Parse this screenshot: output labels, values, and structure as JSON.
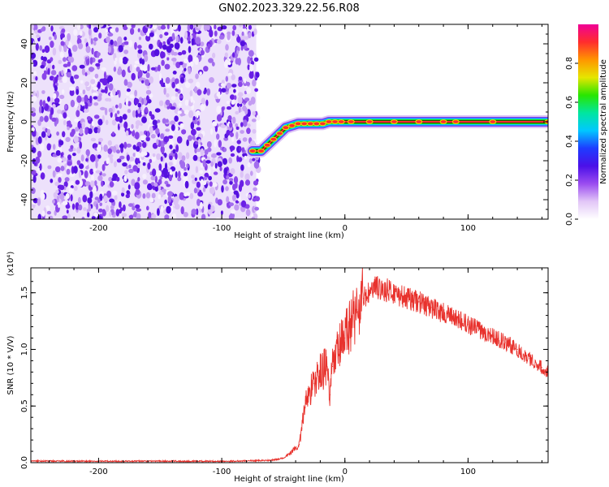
{
  "figure": {
    "title": "GN02.2023.329.22.56.R08"
  },
  "chart_data": [
    {
      "type": "heatmap",
      "xlabel": "Height of straight line (km)",
      "ylabel": "Frequency (Hz)",
      "xlim": [
        -255,
        165
      ],
      "ylim": [
        -50,
        50
      ],
      "xticks": [
        -200,
        -100,
        0,
        100
      ],
      "yticks": [
        -40,
        -20,
        0,
        20,
        40
      ],
      "noise_region_x": [
        -255,
        -72
      ],
      "signal_track": {
        "x": [
          -75,
          -68,
          -63,
          -58,
          -53,
          -48,
          -43,
          -38,
          -33,
          -28,
          -23,
          -18,
          -13,
          -8,
          -3,
          5,
          20,
          40,
          60,
          80,
          90,
          120,
          165
        ],
        "frequency": [
          -15,
          -15,
          -12,
          -9,
          -6,
          -3,
          -2,
          -1,
          -1,
          -1,
          -1,
          -1,
          0,
          0,
          0,
          0,
          0,
          0,
          0,
          0,
          0,
          0,
          0
        ]
      },
      "colorbar": {
        "label": "Normalized spectral amplitude",
        "range": [
          0,
          1
        ],
        "ticks": [
          "0.0",
          "0.2",
          "0.4",
          "0.6",
          "0.8"
        ],
        "colors": [
          "#ffffff",
          "#e2c6f7",
          "#9b4cf0",
          "#4b10e8",
          "#1e3cff",
          "#00c8ff",
          "#00e6a0",
          "#28e600",
          "#e6e600",
          "#ff9600",
          "#ff2d2d",
          "#f00096"
        ]
      }
    },
    {
      "type": "line",
      "xlabel": "Height of straight line (km)",
      "ylabel": "SNR (10 * V/V)",
      "y_multiplier": "(x10⁴)",
      "xlim": [
        -255,
        165
      ],
      "ylim": [
        0,
        1.72
      ],
      "xticks": [
        -200,
        -100,
        0,
        100
      ],
      "yticks": [
        "0.0",
        "0.5",
        "1.0",
        "1.5"
      ],
      "series": [
        {
          "color": "#e8322d",
          "x": [
            -255,
            -200,
            -150,
            -100,
            -60,
            -50,
            -45,
            -40,
            -37,
            -35,
            -32,
            -30,
            -25,
            -20,
            -15,
            -12,
            -10,
            -5,
            0,
            5,
            10,
            15,
            20,
            25,
            30,
            35,
            40,
            50,
            60,
            70,
            80,
            90,
            100,
            110,
            120,
            130,
            140,
            150,
            160,
            165
          ],
          "y": [
            0.015,
            0.012,
            0.014,
            0.012,
            0.02,
            0.04,
            0.08,
            0.13,
            0.16,
            0.3,
            0.55,
            0.6,
            0.7,
            0.8,
            0.85,
            0.6,
            0.85,
            1.0,
            1.1,
            1.25,
            1.35,
            1.45,
            1.5,
            1.55,
            1.53,
            1.52,
            1.5,
            1.45,
            1.42,
            1.37,
            1.32,
            1.27,
            1.22,
            1.17,
            1.12,
            1.06,
            1.0,
            0.92,
            0.84,
            0.8
          ]
        }
      ]
    }
  ]
}
